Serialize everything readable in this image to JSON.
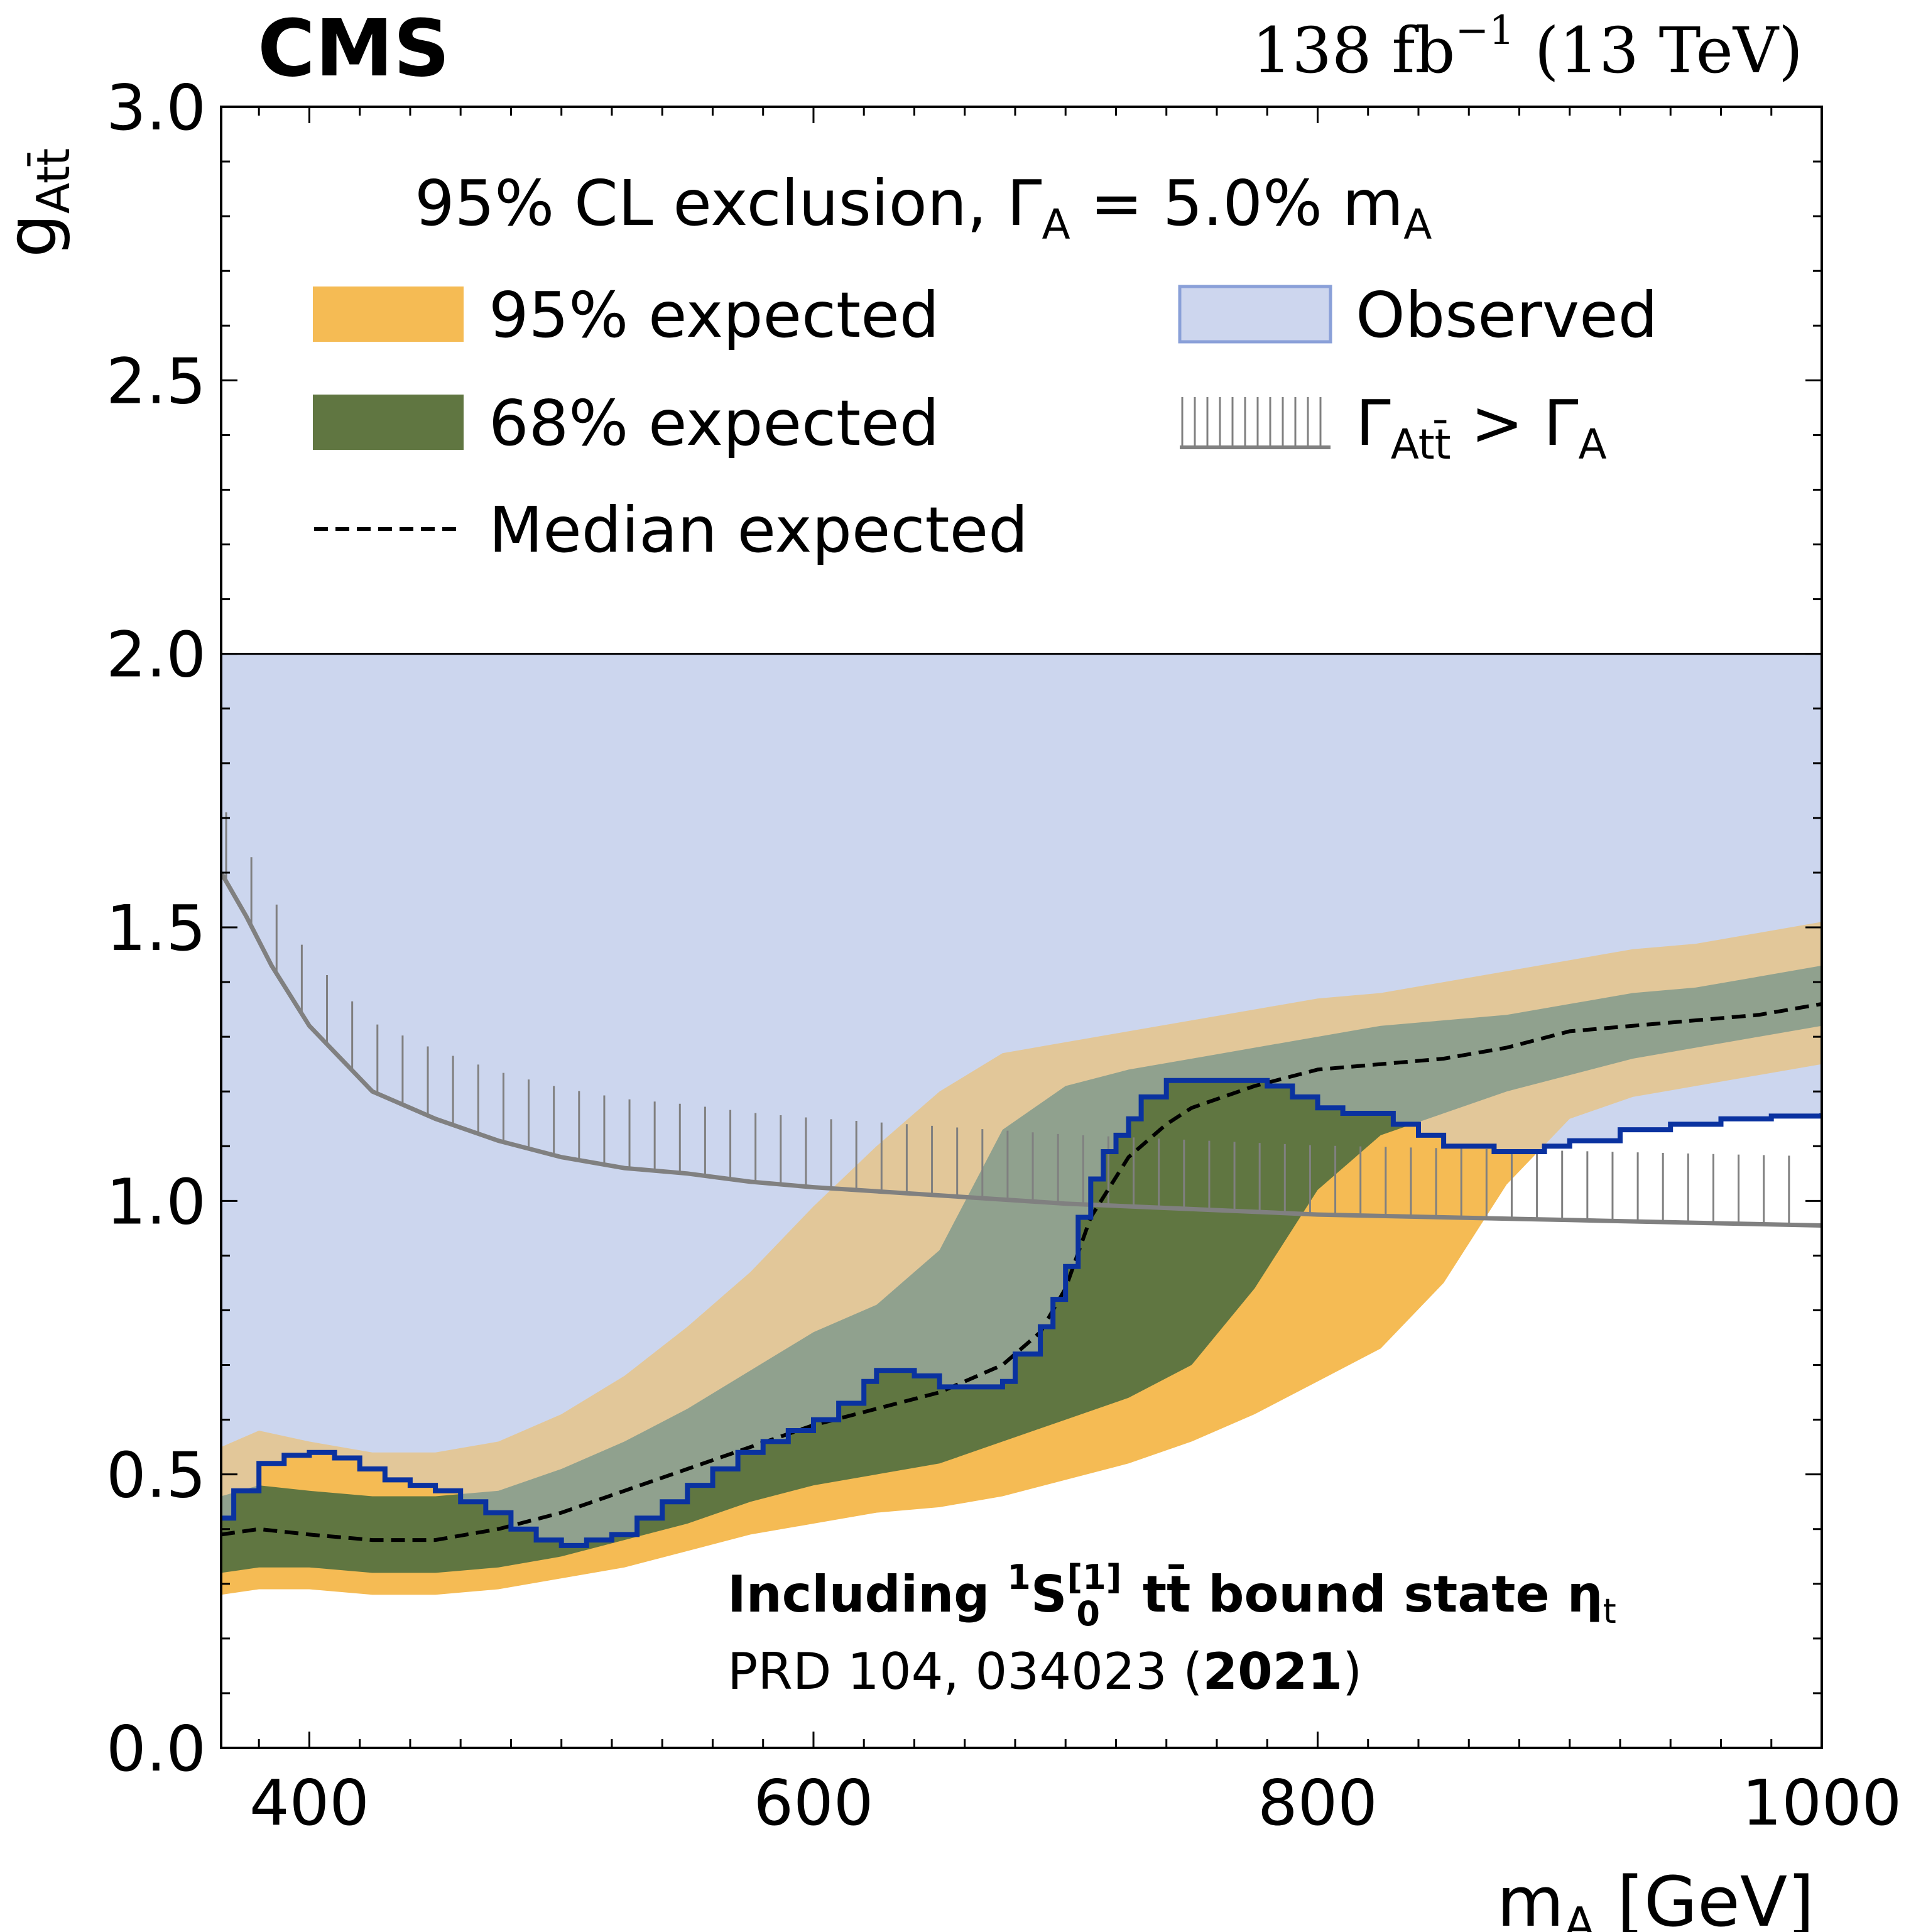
{
  "header": {
    "experiment": "CMS",
    "lumi": "138",
    "lumi_unit": "fb",
    "lumi_exp": "−1",
    "energy": "(13 TeV)"
  },
  "legend": {
    "header_pre": "95% CL exclusion, Γ",
    "header_sub": "A",
    "header_post": " =  5.0% m",
    "header_sub2": "A",
    "items": {
      "band95": "95% expected",
      "band68": "68% expected",
      "median": "Median expected",
      "observed": "Observed",
      "width_pre": "Γ",
      "width_sub": "Att̄",
      "width_post": " > Γ",
      "width_sub2": "A"
    }
  },
  "annotation": {
    "line1_pre": "Including ",
    "line1_sup": "1",
    "line1_S": "S",
    "line1_sup2": "[1]",
    "line1_sub2": "0",
    "line1_post": " tt̄ bound state η",
    "line1_sub": "t",
    "line2_pre": "PRD 104, 034023 (",
    "line2_bold": "2021",
    "line2_post": ")"
  },
  "colors": {
    "band95": "#f5bb54",
    "band68": "#607641",
    "median": "#000000",
    "observed_fill": "#cdd6ee",
    "observed_line": "#0a32a0",
    "width_line": "#808080"
  },
  "chart_data": {
    "type": "line",
    "xlabel": "m",
    "xlabel_sub": "A",
    "xlabel_unit": "[GeV]",
    "ylabel": "g",
    "ylabel_sub": "Att̄",
    "xlim": [
      365,
      1000
    ],
    "ylim": [
      0,
      3.0
    ],
    "xticks": [
      400,
      600,
      800,
      1000
    ],
    "yticks": [
      0.0,
      0.5,
      1.0,
      1.5,
      2.0,
      2.5,
      3.0
    ],
    "ytick_labels": [
      "0.0",
      "0.5",
      "1.0",
      "1.5",
      "2.0",
      "2.5",
      "3.0"
    ],
    "observed_upper": 2.0,
    "band95": {
      "x": [
        365,
        380,
        400,
        425,
        450,
        475,
        500,
        525,
        550,
        575,
        600,
        625,
        650,
        675,
        700,
        725,
        750,
        775,
        800,
        825,
        850,
        875,
        900,
        925,
        950,
        975,
        1000
      ],
      "lower": [
        0.28,
        0.29,
        0.29,
        0.28,
        0.28,
        0.29,
        0.31,
        0.33,
        0.36,
        0.39,
        0.41,
        0.43,
        0.44,
        0.46,
        0.49,
        0.52,
        0.56,
        0.61,
        0.67,
        0.73,
        0.85,
        1.03,
        1.15,
        1.19,
        1.21,
        1.23,
        1.25
      ],
      "upper": [
        0.55,
        0.58,
        0.56,
        0.54,
        0.54,
        0.56,
        0.61,
        0.68,
        0.77,
        0.87,
        0.99,
        1.1,
        1.2,
        1.27,
        1.29,
        1.31,
        1.33,
        1.35,
        1.37,
        1.38,
        1.4,
        1.42,
        1.44,
        1.46,
        1.47,
        1.49,
        1.51
      ]
    },
    "band68": {
      "x": [
        365,
        380,
        400,
        425,
        450,
        475,
        500,
        525,
        550,
        575,
        600,
        625,
        650,
        675,
        700,
        725,
        750,
        775,
        800,
        825,
        850,
        875,
        900,
        925,
        950,
        975,
        1000
      ],
      "lower": [
        0.32,
        0.33,
        0.33,
        0.32,
        0.32,
        0.33,
        0.35,
        0.38,
        0.41,
        0.45,
        0.48,
        0.5,
        0.52,
        0.56,
        0.6,
        0.64,
        0.7,
        0.84,
        1.02,
        1.12,
        1.16,
        1.2,
        1.23,
        1.26,
        1.28,
        1.3,
        1.32
      ],
      "upper": [
        0.46,
        0.48,
        0.47,
        0.46,
        0.46,
        0.47,
        0.51,
        0.56,
        0.62,
        0.69,
        0.76,
        0.81,
        0.91,
        1.13,
        1.21,
        1.24,
        1.26,
        1.28,
        1.3,
        1.32,
        1.33,
        1.34,
        1.36,
        1.38,
        1.39,
        1.41,
        1.43
      ]
    },
    "median": {
      "x": [
        365,
        380,
        400,
        425,
        450,
        475,
        500,
        525,
        550,
        575,
        600,
        625,
        650,
        675,
        690,
        700,
        710,
        725,
        740,
        750,
        775,
        800,
        825,
        850,
        875,
        900,
        925,
        950,
        975,
        1000
      ],
      "y": [
        0.39,
        0.4,
        0.39,
        0.38,
        0.38,
        0.4,
        0.43,
        0.47,
        0.51,
        0.55,
        0.59,
        0.62,
        0.65,
        0.7,
        0.76,
        0.84,
        0.97,
        1.08,
        1.14,
        1.17,
        1.21,
        1.24,
        1.25,
        1.26,
        1.28,
        1.31,
        1.32,
        1.33,
        1.34,
        1.36
      ]
    },
    "observed": {
      "x": [
        365,
        370,
        380,
        390,
        400,
        410,
        420,
        430,
        440,
        450,
        460,
        470,
        480,
        490,
        500,
        510,
        520,
        530,
        540,
        550,
        560,
        570,
        580,
        590,
        600,
        610,
        620,
        625,
        630,
        640,
        650,
        660,
        670,
        675,
        680,
        690,
        695,
        700,
        705,
        710,
        715,
        720,
        725,
        730,
        740,
        750,
        760,
        770,
        780,
        790,
        800,
        810,
        820,
        830,
        840,
        850,
        860,
        870,
        880,
        890,
        900,
        920,
        940,
        960,
        980,
        1000
      ],
      "y": [
        0.42,
        0.47,
        0.52,
        0.535,
        0.54,
        0.53,
        0.51,
        0.49,
        0.48,
        0.47,
        0.45,
        0.43,
        0.4,
        0.38,
        0.37,
        0.38,
        0.39,
        0.42,
        0.45,
        0.48,
        0.51,
        0.54,
        0.56,
        0.58,
        0.6,
        0.63,
        0.67,
        0.69,
        0.69,
        0.68,
        0.66,
        0.66,
        0.66,
        0.67,
        0.72,
        0.77,
        0.82,
        0.88,
        0.97,
        1.04,
        1.09,
        1.12,
        1.15,
        1.19,
        1.22,
        1.22,
        1.22,
        1.22,
        1.21,
        1.19,
        1.17,
        1.16,
        1.16,
        1.14,
        1.12,
        1.1,
        1.1,
        1.09,
        1.09,
        1.1,
        1.11,
        1.13,
        1.14,
        1.15,
        1.155,
        1.16
      ]
    },
    "width_limit": {
      "x": [
        365,
        375,
        385,
        400,
        425,
        450,
        475,
        500,
        525,
        550,
        575,
        600,
        650,
        700,
        750,
        800,
        850,
        900,
        950,
        1000
      ],
      "y": [
        1.6,
        1.52,
        1.43,
        1.32,
        1.2,
        1.15,
        1.11,
        1.08,
        1.06,
        1.05,
        1.035,
        1.025,
        1.01,
        0.995,
        0.985,
        0.975,
        0.97,
        0.965,
        0.96,
        0.955
      ]
    }
  }
}
